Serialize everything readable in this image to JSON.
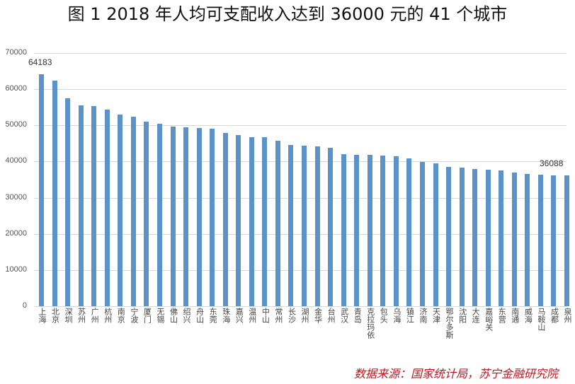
{
  "title": "图 1   2018 年人均可支配收入达到 36000 元的 41 个城市",
  "source": "数据来源：国家统计局，苏宁金融研究院",
  "colors": {
    "bar": "#5b92c8",
    "source_text": "#c0141e",
    "grid": "#d9d9d9"
  },
  "chart_data": {
    "type": "bar",
    "title": "2018 年人均可支配收入达到 36000 元的 41 个城市",
    "xlabel": "",
    "ylabel": "",
    "ylim": [
      0,
      70000
    ],
    "yticks": [
      0,
      10000,
      20000,
      30000,
      40000,
      50000,
      60000,
      70000
    ],
    "grid": true,
    "legend": false,
    "categories": [
      "上海",
      "北京",
      "深圳",
      "苏州",
      "广州",
      "杭州",
      "南京",
      "宁波",
      "厦门",
      "无锡",
      "佛山",
      "绍兴",
      "舟山",
      "东莞",
      "珠海",
      "嘉兴",
      "温州",
      "中山",
      "常州",
      "长沙",
      "湖州",
      "金华",
      "台州",
      "武汉",
      "青岛",
      "克拉玛依",
      "包头",
      "乌海",
      "镇江",
      "济南",
      "天津",
      "鄂尔多斯",
      "沈阳",
      "大连",
      "嘉峪关",
      "东营",
      "南通",
      "威海",
      "马鞍山",
      "成都",
      "泉州"
    ],
    "values": [
      64183,
      62361,
      57543,
      55476,
      55400,
      54348,
      52916,
      52402,
      50948,
      50373,
      49600,
      49389,
      49200,
      49000,
      48000,
      47300,
      46800,
      46700,
      45800,
      44600,
      44400,
      44200,
      43800,
      42100,
      41800,
      41800,
      41600,
      41400,
      40900,
      39900,
      39500,
      38600,
      38400,
      37900,
      37800,
      37600,
      37000,
      36600,
      36300,
      36100,
      36088
    ],
    "annotations": [
      {
        "category": "上海",
        "label": "64183"
      },
      {
        "category": "泉州",
        "label": "36088"
      }
    ]
  }
}
